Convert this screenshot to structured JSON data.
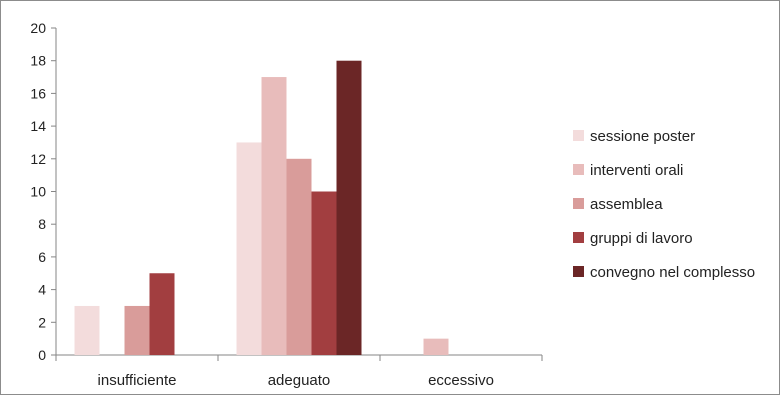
{
  "chart_data": {
    "type": "bar",
    "categories": [
      "insufficiente",
      "adeguato",
      "eccessivo"
    ],
    "series": [
      {
        "name": "sessione poster",
        "color": "#f3dcdc",
        "values": [
          3,
          13,
          0
        ]
      },
      {
        "name": "interventi orali",
        "color": "#e8bcbb",
        "values": [
          0,
          17,
          1
        ]
      },
      {
        "name": "assemblea",
        "color": "#d99c9a",
        "values": [
          3,
          12,
          0
        ]
      },
      {
        "name": "gruppi di lavoro",
        "color": "#a23e40",
        "values": [
          5,
          10,
          0
        ]
      },
      {
        "name": "convegno nel complesso",
        "color": "#6b2626",
        "values": [
          0,
          18,
          0
        ]
      }
    ],
    "ylim": [
      0,
      20
    ],
    "yticks": [
      0,
      2,
      4,
      6,
      8,
      10,
      12,
      14,
      16,
      18,
      20
    ],
    "grid": false,
    "legend_position": "right"
  }
}
